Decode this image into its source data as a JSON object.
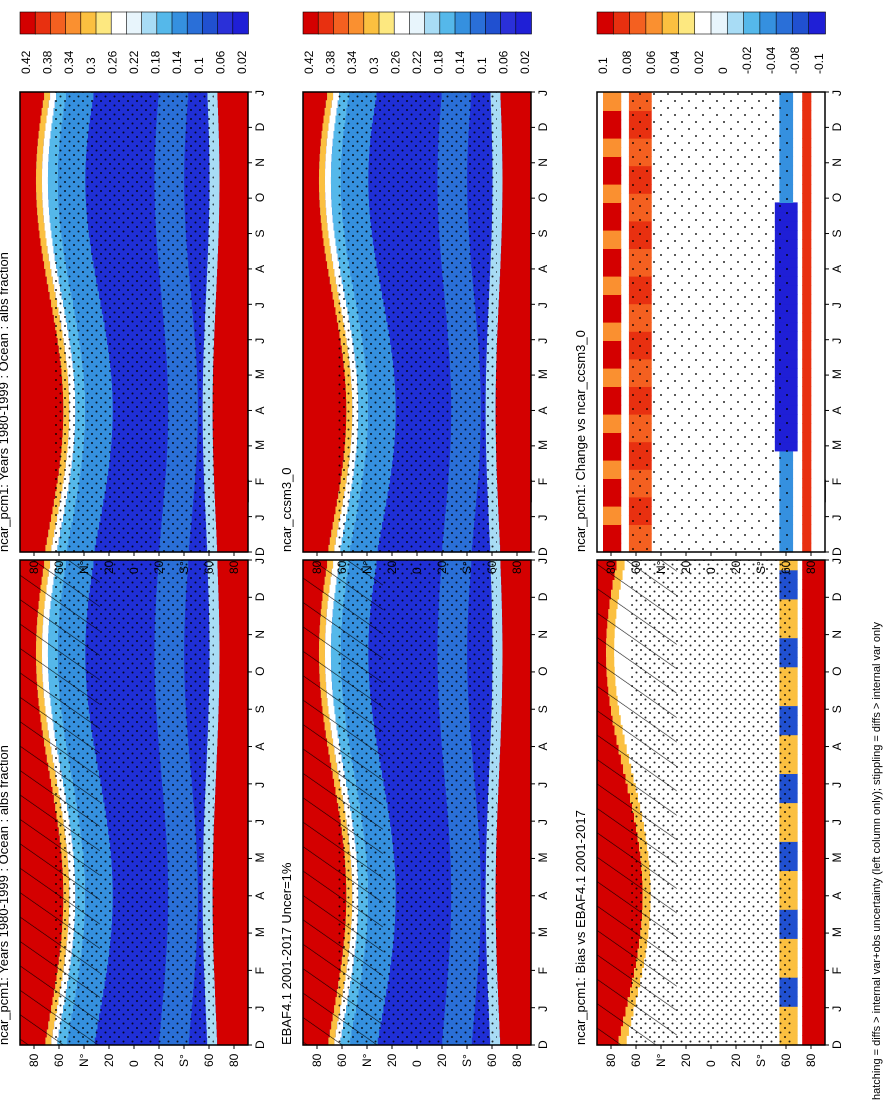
{
  "colors": {
    "clim_scale": [
      "#d40000",
      "#e83010",
      "#f46020",
      "#fa9030",
      "#fbc040",
      "#fde880",
      "#ffffff",
      "#e8f5fc",
      "#a8dcf5",
      "#55b8ea",
      "#3590df",
      "#2a6fd8",
      "#2050d0",
      "#2a30d8",
      "#1f1fd6"
    ],
    "diff_scale": [
      "#d40000",
      "#e83010",
      "#f46020",
      "#fa9030",
      "#fbc040",
      "#fde880",
      "#ffffff",
      "#e8f5fc",
      "#a8dcf5",
      "#55b8ea",
      "#3590df",
      "#2a6fd8",
      "#2050d0",
      "#1f1fd6"
    ]
  },
  "panels": [
    {
      "id": "col1-row1",
      "title": "ncar_pcm1: Years 1980-1999 : Ocean : albs fraction",
      "kind": "clim",
      "hatch": true,
      "stipple": true,
      "cbar": "clim"
    },
    {
      "id": "col1-row2",
      "title": "EBAF4.1 2001-2017 Uncer=1%",
      "kind": "clim",
      "hatch": true,
      "stipple": true,
      "cbar": "clim"
    },
    {
      "id": "col1-row3",
      "title": "ncar_pcm1: Bias vs EBAF4.1 2001-2017",
      "kind": "bias",
      "hatch": true,
      "stipple": true,
      "cbar": "diff"
    },
    {
      "id": "col2-row1",
      "title": "ncar_pcm1: Years 1980-1999 : Ocean : albs fraction",
      "kind": "clim",
      "hatch": false,
      "stipple": true,
      "cbar": "clim"
    },
    {
      "id": "col2-row2",
      "title": "ncar_ccsm3_0",
      "kind": "clim",
      "hatch": false,
      "stipple": true,
      "cbar": "clim"
    },
    {
      "id": "col2-row3",
      "title": "ncar_pcm1: Change vs ncar_ccsm3_0",
      "kind": "change",
      "hatch": false,
      "stipple": true,
      "cbar": "diff"
    }
  ],
  "chart_data": {
    "type": "heatmap",
    "month_ticks": [
      "D",
      "J",
      "F",
      "M",
      "A",
      "M",
      "J",
      "J",
      "A",
      "S",
      "O",
      "N",
      "D",
      "J"
    ],
    "lat_ticks": [
      "80",
      "60",
      "N°",
      "20",
      "0",
      "20",
      "S°",
      "60",
      "80"
    ],
    "colorbars": {
      "clim": {
        "labels": [
          "0.42",
          "0.38",
          "0.34",
          "0.3",
          "0.26",
          "0.22",
          "0.18",
          "0.14",
          "0.1",
          "0.06",
          "0.02"
        ]
      },
      "diff": {
        "labels": [
          "0.1",
          "0.08",
          "0.06",
          "0.04",
          "0.02",
          "0",
          "-0.02",
          "-0.04",
          "-0.08",
          "-0.1"
        ]
      }
    }
  },
  "footnote": "hatching = diffs > internal var+obs uncertainty (left column only); stippling = diffs > internal var only"
}
